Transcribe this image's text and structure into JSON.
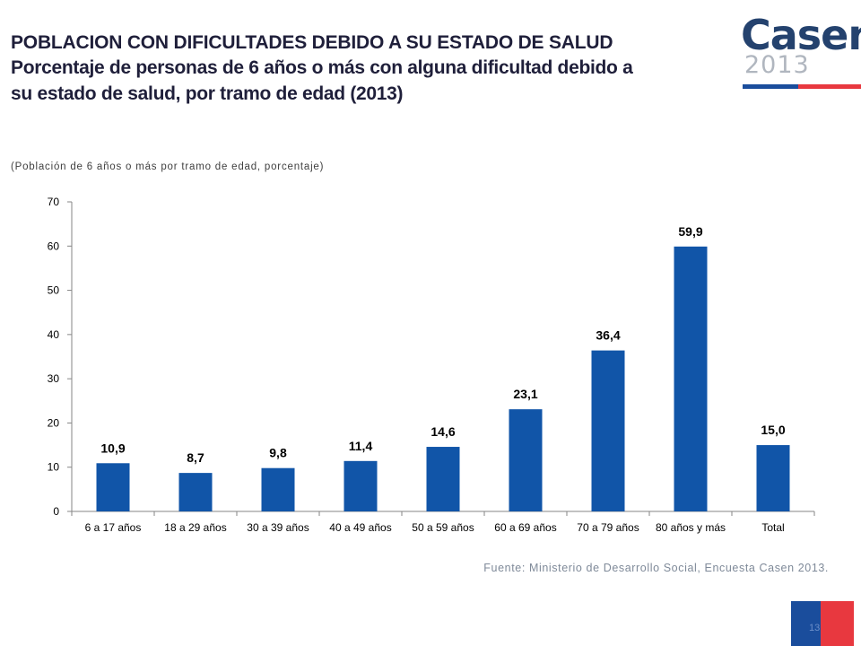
{
  "header": {
    "title": "POBLACION CON DIFICULTADES DEBIDO A SU ESTADO DE SALUD",
    "subtitle_line1": "Porcentaje de personas de 6 años o más con alguna dificultad debido a",
    "subtitle_line2": "su estado de salud, por tramo de edad (2013)"
  },
  "logo": {
    "word": "Casen",
    "year": "2013"
  },
  "population_note": "(Población de 6 años o más por tramo de edad, porcentaje)",
  "source": "Fuente: Ministerio de Desarrollo Social, Encuesta Casen 2013.",
  "page_number": "13",
  "colors": {
    "bar": "#1155a8",
    "title": "#1f1f3a",
    "logo_blue": "#24426e",
    "accent_red": "#e8383f"
  },
  "chart_data": {
    "type": "bar",
    "categories": [
      "6 a 17 años",
      "18 a 29 años",
      "30 a 39 años",
      "40 a 49 años",
      "50 a 59 años",
      "60 a 69 años",
      "70 a 79 años",
      "80 años y más",
      "Total"
    ],
    "values": [
      10.9,
      8.7,
      9.8,
      11.4,
      14.6,
      23.1,
      36.4,
      59.9,
      15.0
    ],
    "value_labels": [
      "10,9",
      "8,7",
      "9,8",
      "11,4",
      "14,6",
      "23,1",
      "36,4",
      "59,9",
      "15,0"
    ],
    "y_ticks": [
      0,
      10,
      20,
      30,
      40,
      50,
      60,
      70
    ],
    "ylim": [
      0,
      70
    ],
    "grid": false,
    "legend": "none"
  }
}
